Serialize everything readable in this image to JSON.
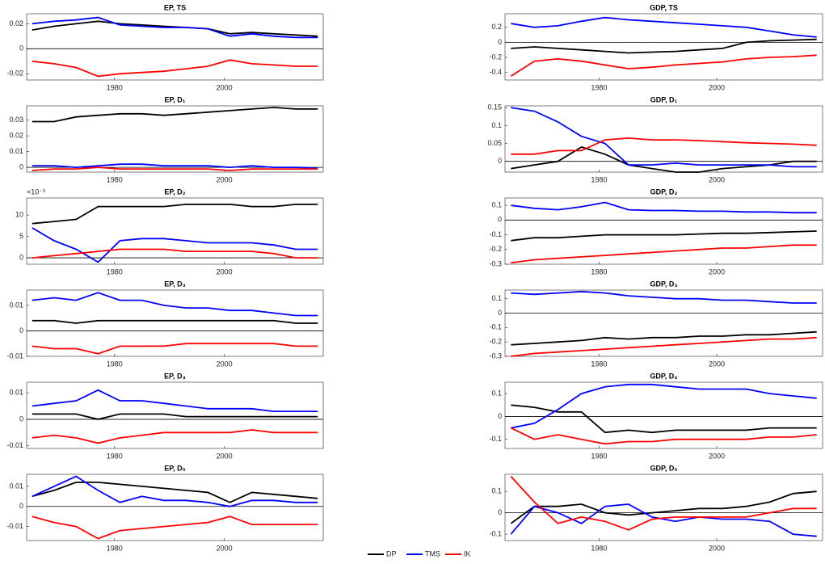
{
  "chart_data": [
    {
      "type": "line",
      "title": "EP, TS",
      "x": [
        1965,
        1969,
        1973,
        1977,
        1981,
        1985,
        1989,
        1993,
        1997,
        2001,
        2005,
        2009,
        2013,
        2017
      ],
      "xlim": [
        1964,
        2018
      ],
      "xticks": [
        1980,
        2000
      ],
      "ylim": [
        -0.025,
        0.028
      ],
      "yticks": [
        -0.02,
        0,
        0.02
      ],
      "series": [
        {
          "name": "DP",
          "color": "#000000",
          "values": [
            0.015,
            0.018,
            0.02,
            0.022,
            0.02,
            0.019,
            0.018,
            0.017,
            0.016,
            0.012,
            0.013,
            0.012,
            0.011,
            0.01
          ]
        },
        {
          "name": "TMS",
          "color": "#0000ff",
          "values": [
            0.02,
            0.022,
            0.023,
            0.025,
            0.019,
            0.018,
            0.017,
            0.017,
            0.016,
            0.01,
            0.012,
            0.01,
            0.009,
            0.009
          ]
        },
        {
          "name": "IK",
          "color": "#ff0000",
          "values": [
            -0.01,
            -0.012,
            -0.015,
            -0.022,
            -0.02,
            -0.019,
            -0.018,
            -0.016,
            -0.014,
            -0.009,
            -0.012,
            -0.013,
            -0.014,
            -0.014
          ]
        }
      ]
    },
    {
      "type": "line",
      "title": "GDP, TS",
      "x": [
        1965,
        1969,
        1973,
        1977,
        1981,
        1985,
        1989,
        1993,
        1997,
        2001,
        2005,
        2009,
        2013,
        2017
      ],
      "xlim": [
        1964,
        2018
      ],
      "xticks": [
        1980,
        2000
      ],
      "ylim": [
        -0.5,
        0.38
      ],
      "yticks": [
        -0.4,
        -0.2,
        0,
        0.2
      ],
      "series": [
        {
          "name": "DP",
          "color": "#000000",
          "values": [
            -0.08,
            -0.06,
            -0.08,
            -0.1,
            -0.12,
            -0.14,
            -0.13,
            -0.12,
            -0.1,
            -0.08,
            0,
            0.02,
            0.03,
            0.04
          ]
        },
        {
          "name": "TMS",
          "color": "#0000ff",
          "values": [
            0.25,
            0.2,
            0.22,
            0.28,
            0.33,
            0.3,
            0.28,
            0.26,
            0.24,
            0.22,
            0.2,
            0.15,
            0.1,
            0.07
          ]
        },
        {
          "name": "IK",
          "color": "#ff0000",
          "values": [
            -0.45,
            -0.25,
            -0.22,
            -0.25,
            -0.3,
            -0.35,
            -0.33,
            -0.3,
            -0.28,
            -0.26,
            -0.22,
            -0.2,
            -0.19,
            -0.17
          ]
        }
      ]
    },
    {
      "type": "line",
      "title": "EP, D₁",
      "x": [
        1965,
        1969,
        1973,
        1977,
        1981,
        1985,
        1989,
        1993,
        1997,
        2001,
        2005,
        2009,
        2013,
        2017
      ],
      "xlim": [
        1964,
        2018
      ],
      "xticks": [
        1980,
        2000
      ],
      "ylim": [
        -0.003,
        0.039
      ],
      "yticks": [
        0,
        0.01,
        0.02,
        0.03
      ],
      "series": [
        {
          "name": "DP",
          "color": "#000000",
          "values": [
            0.029,
            0.029,
            0.032,
            0.033,
            0.034,
            0.034,
            0.033,
            0.034,
            0.035,
            0.036,
            0.037,
            0.038,
            0.037,
            0.037
          ]
        },
        {
          "name": "TMS",
          "color": "#0000ff",
          "values": [
            0.001,
            0.001,
            0,
            0.001,
            0.002,
            0.002,
            0.001,
            0.001,
            0.001,
            0,
            0.001,
            0,
            0,
            -0.0005
          ]
        },
        {
          "name": "IK",
          "color": "#ff0000",
          "values": [
            -0.002,
            -0.001,
            -0.001,
            0,
            -0.001,
            -0.001,
            -0.001,
            -0.001,
            -0.001,
            -0.002,
            -0.001,
            -0.001,
            -0.001,
            -0.001
          ]
        }
      ]
    },
    {
      "type": "line",
      "title": "GDP, D₁",
      "x": [
        1965,
        1969,
        1973,
        1977,
        1981,
        1985,
        1989,
        1993,
        1997,
        2001,
        2005,
        2009,
        2013,
        2017
      ],
      "xlim": [
        1964,
        2018
      ],
      "xticks": [
        1980,
        2000
      ],
      "ylim": [
        -0.03,
        0.155
      ],
      "yticks": [
        0,
        0.05,
        0.1,
        0.15
      ],
      "series": [
        {
          "name": "DP",
          "color": "#000000",
          "values": [
            -0.02,
            -0.01,
            0,
            0.04,
            0.02,
            -0.01,
            -0.02,
            -0.03,
            -0.03,
            -0.02,
            -0.015,
            -0.01,
            0,
            0
          ]
        },
        {
          "name": "TMS",
          "color": "#0000ff",
          "values": [
            0.15,
            0.14,
            0.11,
            0.07,
            0.05,
            -0.01,
            -0.01,
            -0.005,
            -0.01,
            -0.01,
            -0.01,
            -0.01,
            -0.015,
            -0.015
          ]
        },
        {
          "name": "IK",
          "color": "#ff0000",
          "values": [
            0.02,
            0.02,
            0.03,
            0.03,
            0.06,
            0.065,
            0.06,
            0.06,
            0.058,
            0.055,
            0.052,
            0.05,
            0.048,
            0.045
          ]
        }
      ]
    },
    {
      "type": "line",
      "title": "EP, D₂",
      "y_multiplier": "×10⁻³",
      "x": [
        1965,
        1969,
        1973,
        1977,
        1981,
        1985,
        1989,
        1993,
        1997,
        2001,
        2005,
        2009,
        2013,
        2017
      ],
      "xlim": [
        1964,
        2018
      ],
      "xticks": [
        1980,
        2000
      ],
      "ylim": [
        -1.5,
        14
      ],
      "yticks": [
        0,
        5,
        10
      ],
      "series": [
        {
          "name": "DP",
          "color": "#000000",
          "values": [
            8,
            8.5,
            9,
            12,
            12,
            12,
            12,
            12.5,
            12.5,
            12.5,
            12,
            12,
            12.5,
            12.5
          ]
        },
        {
          "name": "TMS",
          "color": "#0000ff",
          "values": [
            7,
            4,
            2,
            -1,
            4,
            4.5,
            4.5,
            4,
            3.5,
            3.5,
            3.5,
            3,
            2,
            2
          ]
        },
        {
          "name": "IK",
          "color": "#ff0000",
          "values": [
            0,
            0.5,
            1,
            1.5,
            2,
            2,
            2,
            1.5,
            1.5,
            1.5,
            1.5,
            1,
            0,
            0
          ]
        }
      ]
    },
    {
      "type": "line",
      "title": "GDP, D₂",
      "x": [
        1965,
        1969,
        1973,
        1977,
        1981,
        1985,
        1989,
        1993,
        1997,
        2001,
        2005,
        2009,
        2013,
        2017
      ],
      "xlim": [
        1964,
        2018
      ],
      "xticks": [
        1980,
        2000
      ],
      "ylim": [
        -0.3,
        0.15
      ],
      "yticks": [
        -0.3,
        -0.2,
        -0.1,
        0,
        0.1
      ],
      "series": [
        {
          "name": "DP",
          "color": "#000000",
          "values": [
            -0.14,
            -0.12,
            -0.12,
            -0.11,
            -0.1,
            -0.1,
            -0.1,
            -0.1,
            -0.095,
            -0.09,
            -0.09,
            -0.085,
            -0.08,
            -0.075
          ]
        },
        {
          "name": "TMS",
          "color": "#0000ff",
          "values": [
            0.1,
            0.08,
            0.07,
            0.09,
            0.12,
            0.07,
            0.065,
            0.065,
            0.06,
            0.06,
            0.055,
            0.055,
            0.05,
            0.05
          ]
        },
        {
          "name": "IK",
          "color": "#ff0000",
          "values": [
            -0.29,
            -0.27,
            -0.26,
            -0.25,
            -0.24,
            -0.23,
            -0.22,
            -0.21,
            -0.2,
            -0.19,
            -0.19,
            -0.18,
            -0.17,
            -0.17
          ]
        }
      ]
    },
    {
      "type": "line",
      "title": "EP, D₃",
      "x": [
        1965,
        1969,
        1973,
        1977,
        1981,
        1985,
        1989,
        1993,
        1997,
        2001,
        2005,
        2009,
        2013,
        2017
      ],
      "xlim": [
        1964,
        2018
      ],
      "xticks": [
        1980,
        2000
      ],
      "ylim": [
        -0.01,
        0.016
      ],
      "yticks": [
        -0.01,
        0,
        0.01
      ],
      "series": [
        {
          "name": "DP",
          "color": "#000000",
          "values": [
            0.004,
            0.004,
            0.003,
            0.004,
            0.004,
            0.004,
            0.004,
            0.004,
            0.004,
            0.004,
            0.004,
            0.004,
            0.003,
            0.003
          ]
        },
        {
          "name": "TMS",
          "color": "#0000ff",
          "values": [
            0.012,
            0.013,
            0.012,
            0.015,
            0.012,
            0.012,
            0.01,
            0.009,
            0.009,
            0.008,
            0.008,
            0.007,
            0.006,
            0.006
          ]
        },
        {
          "name": "IK",
          "color": "#ff0000",
          "values": [
            -0.006,
            -0.007,
            -0.007,
            -0.009,
            -0.006,
            -0.006,
            -0.006,
            -0.005,
            -0.005,
            -0.005,
            -0.005,
            -0.005,
            -0.006,
            -0.006
          ]
        }
      ]
    },
    {
      "type": "line",
      "title": "GDP, D₃",
      "x": [
        1965,
        1969,
        1973,
        1977,
        1981,
        1985,
        1989,
        1993,
        1997,
        2001,
        2005,
        2009,
        2013,
        2017
      ],
      "xlim": [
        1964,
        2018
      ],
      "xticks": [
        1980,
        2000
      ],
      "ylim": [
        -0.3,
        0.16
      ],
      "yticks": [
        -0.3,
        -0.2,
        -0.1,
        0,
        0.1
      ],
      "series": [
        {
          "name": "DP",
          "color": "#000000",
          "values": [
            -0.22,
            -0.21,
            -0.2,
            -0.19,
            -0.17,
            -0.18,
            -0.17,
            -0.17,
            -0.16,
            -0.16,
            -0.15,
            -0.15,
            -0.14,
            -0.13
          ]
        },
        {
          "name": "TMS",
          "color": "#0000ff",
          "values": [
            0.14,
            0.13,
            0.14,
            0.15,
            0.14,
            0.12,
            0.11,
            0.1,
            0.1,
            0.09,
            0.09,
            0.08,
            0.07,
            0.07
          ]
        },
        {
          "name": "IK",
          "color": "#ff0000",
          "values": [
            -0.3,
            -0.28,
            -0.27,
            -0.26,
            -0.25,
            -0.24,
            -0.23,
            -0.22,
            -0.21,
            -0.2,
            -0.19,
            -0.18,
            -0.18,
            -0.17
          ]
        }
      ]
    },
    {
      "type": "line",
      "title": "EP, D₄",
      "x": [
        1965,
        1969,
        1973,
        1977,
        1981,
        1985,
        1989,
        1993,
        1997,
        2001,
        2005,
        2009,
        2013,
        2017
      ],
      "xlim": [
        1964,
        2018
      ],
      "xticks": [
        1980,
        2000
      ],
      "ylim": [
        -0.011,
        0.014
      ],
      "yticks": [
        -0.01,
        0,
        0.01
      ],
      "series": [
        {
          "name": "DP",
          "color": "#000000",
          "values": [
            0.002,
            0.002,
            0.002,
            0,
            0.002,
            0.002,
            0.002,
            0.001,
            0.001,
            0.001,
            0.001,
            0.001,
            0.001,
            0.001
          ]
        },
        {
          "name": "TMS",
          "color": "#0000ff",
          "values": [
            0.005,
            0.006,
            0.007,
            0.011,
            0.007,
            0.007,
            0.006,
            0.005,
            0.004,
            0.004,
            0.004,
            0.003,
            0.003,
            0.003
          ]
        },
        {
          "name": "IK",
          "color": "#ff0000",
          "values": [
            -0.007,
            -0.006,
            -0.007,
            -0.009,
            -0.007,
            -0.006,
            -0.005,
            -0.005,
            -0.005,
            -0.005,
            -0.004,
            -0.005,
            -0.005,
            -0.005
          ]
        }
      ]
    },
    {
      "type": "line",
      "title": "GDP, D₄",
      "x": [
        1965,
        1969,
        1973,
        1977,
        1981,
        1985,
        1989,
        1993,
        1997,
        2001,
        2005,
        2009,
        2013,
        2017
      ],
      "xlim": [
        1964,
        2018
      ],
      "xticks": [
        1980,
        2000
      ],
      "ylim": [
        -0.14,
        0.15
      ],
      "yticks": [
        -0.1,
        0,
        0.1
      ],
      "series": [
        {
          "name": "DP",
          "color": "#000000",
          "values": [
            0.05,
            0.04,
            0.02,
            0.02,
            -0.07,
            -0.06,
            -0.07,
            -0.06,
            -0.06,
            -0.06,
            -0.06,
            -0.05,
            -0.05,
            -0.05
          ]
        },
        {
          "name": "TMS",
          "color": "#0000ff",
          "values": [
            -0.05,
            -0.03,
            0.03,
            0.1,
            0.13,
            0.14,
            0.14,
            0.13,
            0.12,
            0.12,
            0.12,
            0.1,
            0.09,
            0.08
          ]
        },
        {
          "name": "IK",
          "color": "#ff0000",
          "values": [
            -0.05,
            -0.1,
            -0.08,
            -0.1,
            -0.12,
            -0.11,
            -0.11,
            -0.1,
            -0.1,
            -0.1,
            -0.1,
            -0.09,
            -0.09,
            -0.08
          ]
        }
      ]
    },
    {
      "type": "line",
      "title": "EP, D₅",
      "x": [
        1965,
        1969,
        1973,
        1977,
        1981,
        1985,
        1989,
        1993,
        1997,
        2001,
        2005,
        2009,
        2013,
        2017
      ],
      "xlim": [
        1964,
        2018
      ],
      "xticks": [
        1980,
        2000
      ],
      "ylim": [
        -0.017,
        0.016
      ],
      "yticks": [
        -0.01,
        0,
        0.01
      ],
      "series": [
        {
          "name": "DP",
          "color": "#000000",
          "values": [
            0.005,
            0.008,
            0.012,
            0.012,
            0.011,
            0.01,
            0.009,
            0.008,
            0.007,
            0.002,
            0.007,
            0.006,
            0.005,
            0.004
          ]
        },
        {
          "name": "TMS",
          "color": "#0000ff",
          "values": [
            0.005,
            0.01,
            0.015,
            0.008,
            0.002,
            0.005,
            0.003,
            0.003,
            0.002,
            0,
            0.003,
            0.003,
            0.002,
            0.002
          ]
        },
        {
          "name": "IK",
          "color": "#ff0000",
          "values": [
            -0.005,
            -0.008,
            -0.01,
            -0.016,
            -0.012,
            -0.011,
            -0.01,
            -0.009,
            -0.008,
            -0.005,
            -0.009,
            -0.009,
            -0.009,
            -0.009
          ]
        }
      ]
    },
    {
      "type": "line",
      "title": "GDP, D₅",
      "x": [
        1965,
        1969,
        1973,
        1977,
        1981,
        1985,
        1989,
        1993,
        1997,
        2001,
        2005,
        2009,
        2013,
        2017
      ],
      "xlim": [
        1964,
        2018
      ],
      "xticks": [
        1980,
        2000
      ],
      "ylim": [
        -0.13,
        0.18
      ],
      "yticks": [
        -0.1,
        0,
        0.1
      ],
      "series": [
        {
          "name": "DP",
          "color": "#000000",
          "values": [
            -0.05,
            0.03,
            0.03,
            0.04,
            0,
            -0.01,
            0,
            0.01,
            0.02,
            0.02,
            0.03,
            0.05,
            0.09,
            0.1
          ]
        },
        {
          "name": "TMS",
          "color": "#0000ff",
          "values": [
            -0.1,
            0.03,
            0,
            -0.05,
            0.03,
            0.04,
            -0.02,
            -0.04,
            -0.02,
            -0.03,
            -0.03,
            -0.04,
            -0.1,
            -0.11
          ]
        },
        {
          "name": "IK",
          "color": "#ff0000",
          "values": [
            0.17,
            0.05,
            -0.05,
            -0.02,
            -0.04,
            -0.08,
            -0.03,
            -0.02,
            -0.02,
            -0.02,
            -0.02,
            0,
            0.02,
            0.02
          ]
        }
      ]
    }
  ]
}
